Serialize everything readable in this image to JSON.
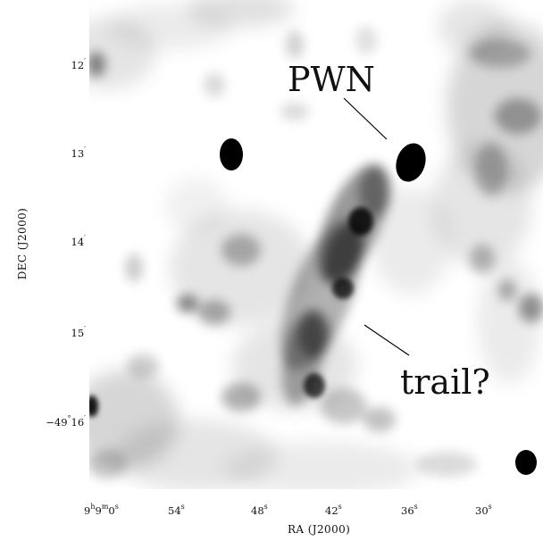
{
  "figure": {
    "x_axis_title": "RA (J2000)",
    "y_axis_title": "DEC (J2000)",
    "x_ticks": [
      {
        "main": "9",
        "sup1": "h",
        "mid": "9",
        "sup2": "m",
        "tail": "0",
        "sup3": "s"
      },
      {
        "main": "54",
        "sup1": "s"
      },
      {
        "main": "48",
        "sup1": "s"
      },
      {
        "main": "42",
        "sup1": "s"
      },
      {
        "main": "36",
        "sup1": "s"
      },
      {
        "main": "30",
        "sup1": "s"
      }
    ],
    "y_ticks": [
      {
        "main": "12",
        "sup1": "′"
      },
      {
        "main": "13",
        "sup1": "′"
      },
      {
        "main": "14",
        "sup1": "′"
      },
      {
        "main": "15",
        "sup1": "′"
      },
      {
        "main": "−49",
        "sup1": "°",
        "mid": "16",
        "sup2": "′"
      }
    ],
    "annotations": {
      "pwn": "PWN",
      "trail": "trail?"
    },
    "colors": {
      "background": "#ffffff",
      "emission": "#000000",
      "text": "#111111"
    }
  }
}
